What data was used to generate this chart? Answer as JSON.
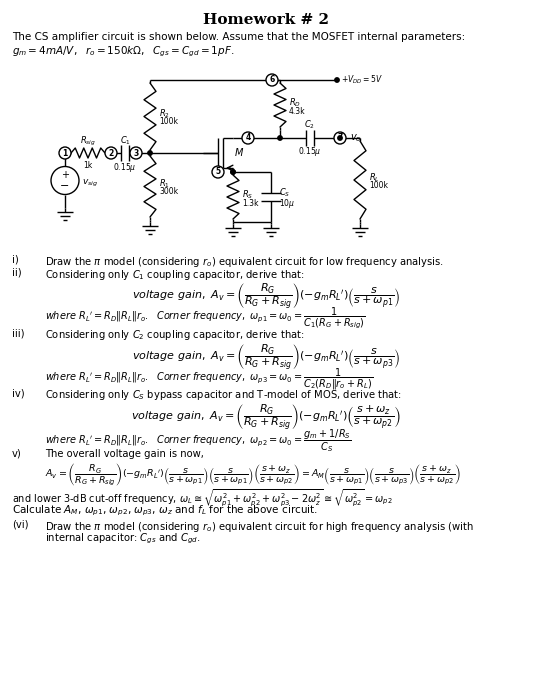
{
  "title": "Homework # 2",
  "intro": "The CS amplifier circuit is shown below. Assume that the MOSFET internal parameters:",
  "params_gm": "g_m = 4mA/V,  r_o = 150kΩ,  C_gs = C_gd = 1pF.",
  "bg_color": "#ffffff",
  "text_color": "#000000",
  "circuit": {
    "vdd_label": "+V_DD=5V",
    "r2_label": "100k",
    "r2_name": "R_2",
    "r1_label": "300k",
    "r1_name": "R_1",
    "rd_label": "4.3k",
    "rd_name": "R_D",
    "rs_label": "1.3k",
    "rs_name": "R_S",
    "rl_label": "100k",
    "rl_name": "R_L",
    "rsig_label": "1k",
    "rsig_name": "R_sig",
    "c1_label": "0.15μ",
    "c1_name": "C_1",
    "c2_label": "0.15μ",
    "c2_name": "C_2",
    "cs_label": "10μ",
    "cs_name": "C_S",
    "mosfet_name": "M"
  },
  "questions": [
    {
      "num": "i)",
      "indent": 40,
      "text": "Draw the π model (considering r_o) equivalent circuit for low frequency analysis."
    },
    {
      "num": "ii)",
      "indent": 40,
      "text": "Considering only C_1 coupling capacitor, derive that:"
    }
  ]
}
